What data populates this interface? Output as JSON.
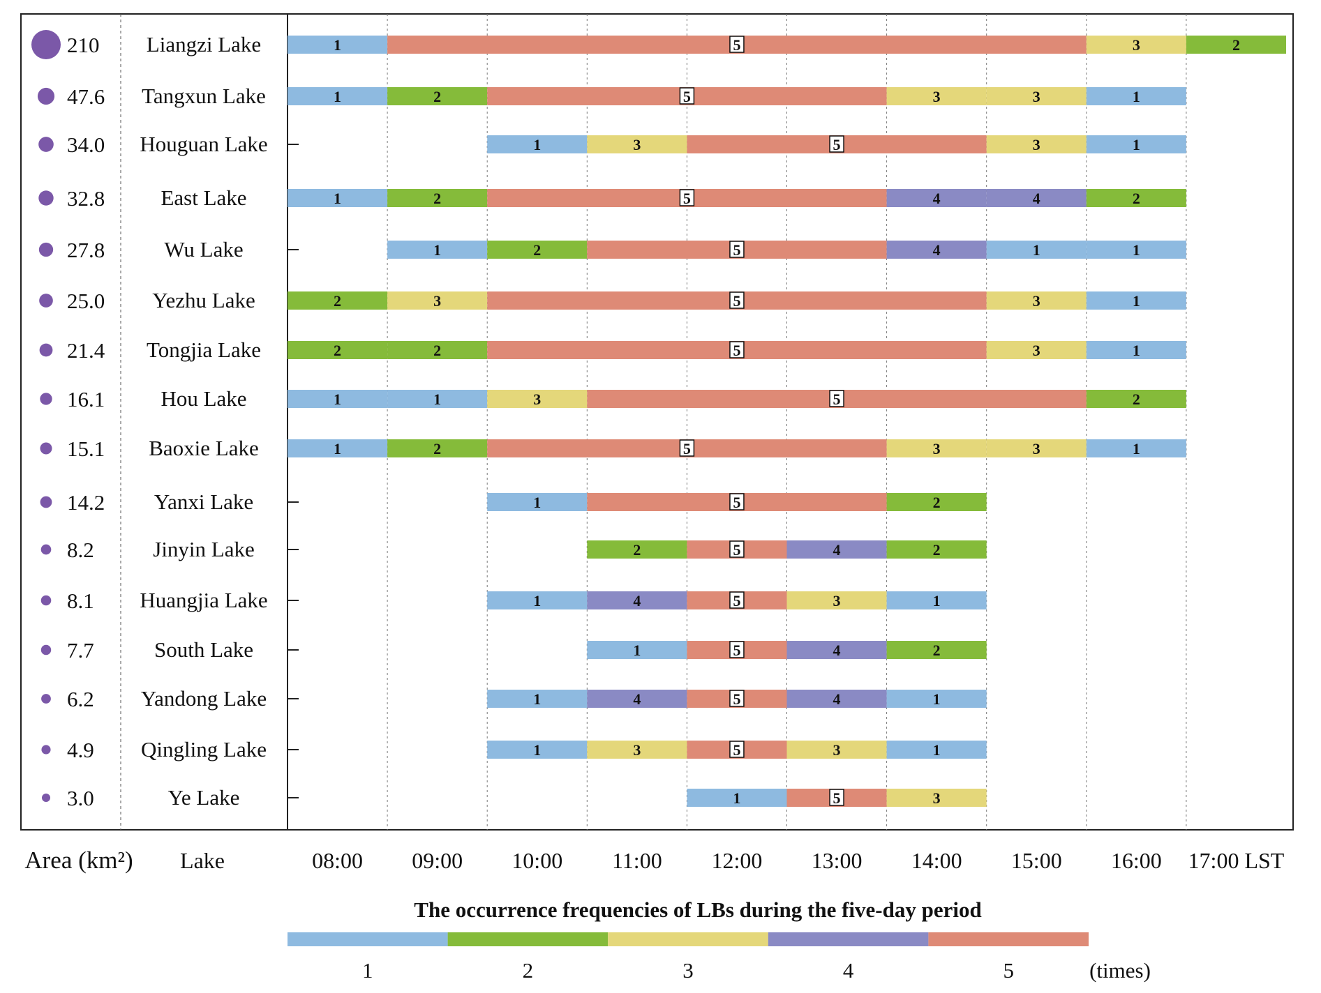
{
  "chart_data": {
    "type": "gantt",
    "title": "The occurrence frequencies of LBs during the five-day period",
    "column_headers": {
      "area": "Area (km²)",
      "lake": "Lake"
    },
    "time_unit_label": "LST",
    "times": [
      "08:00",
      "09:00",
      "10:00",
      "11:00",
      "12:00",
      "13:00",
      "14:00",
      "15:00",
      "16:00",
      "17:00"
    ],
    "legend": {
      "unit": "(times)",
      "levels": [
        {
          "value": 1,
          "label": "1",
          "color": "#8EBAE0"
        },
        {
          "value": 2,
          "label": "2",
          "color": "#85BB3A"
        },
        {
          "value": 3,
          "label": "3",
          "color": "#E4D77A"
        },
        {
          "value": 4,
          "label": "4",
          "color": "#8A8AC4"
        },
        {
          "value": 5,
          "label": "5",
          "color": "#DE8A76"
        }
      ]
    },
    "marker_color": "#7B58A8",
    "lakes": [
      {
        "name": "Liangzi Lake",
        "area": 210,
        "area_label": "210",
        "start": 8,
        "segments": [
          {
            "start": 8,
            "end": 9,
            "value": 1
          },
          {
            "start": 9,
            "end": 16,
            "value": 5
          },
          {
            "start": 16,
            "end": 17,
            "value": 3
          },
          {
            "start": 17,
            "end": 18,
            "value": 2
          }
        ]
      },
      {
        "name": "Tangxun Lake",
        "area": 47.6,
        "area_label": "47.6",
        "start": 8,
        "segments": [
          {
            "start": 8,
            "end": 9,
            "value": 1
          },
          {
            "start": 9,
            "end": 10,
            "value": 2
          },
          {
            "start": 10,
            "end": 14,
            "value": 5
          },
          {
            "start": 14,
            "end": 15,
            "value": 3
          },
          {
            "start": 15,
            "end": 16,
            "value": 3
          },
          {
            "start": 16,
            "end": 17,
            "value": 1
          }
        ]
      },
      {
        "name": "Houguan Lake",
        "area": 34.0,
        "area_label": "34.0",
        "start": 10,
        "segments": [
          {
            "start": 10,
            "end": 11,
            "value": 1
          },
          {
            "start": 11,
            "end": 12,
            "value": 3
          },
          {
            "start": 12,
            "end": 15,
            "value": 5
          },
          {
            "start": 15,
            "end": 16,
            "value": 3
          },
          {
            "start": 16,
            "end": 17,
            "value": 1
          }
        ]
      },
      {
        "name": "East Lake",
        "area": 32.8,
        "area_label": "32.8",
        "start": 8,
        "segments": [
          {
            "start": 8,
            "end": 9,
            "value": 1
          },
          {
            "start": 9,
            "end": 10,
            "value": 2
          },
          {
            "start": 10,
            "end": 14,
            "value": 5
          },
          {
            "start": 14,
            "end": 15,
            "value": 4
          },
          {
            "start": 15,
            "end": 16,
            "value": 4
          },
          {
            "start": 16,
            "end": 17,
            "value": 2
          }
        ]
      },
      {
        "name": "Wu Lake",
        "area": 27.8,
        "area_label": "27.8",
        "start": 9,
        "segments": [
          {
            "start": 9,
            "end": 10,
            "value": 1
          },
          {
            "start": 10,
            "end": 11,
            "value": 2
          },
          {
            "start": 11,
            "end": 14,
            "value": 5
          },
          {
            "start": 14,
            "end": 15,
            "value": 4
          },
          {
            "start": 15,
            "end": 16,
            "value": 1
          },
          {
            "start": 16,
            "end": 17,
            "value": 1
          }
        ]
      },
      {
        "name": "Yezhu Lake",
        "area": 25.0,
        "area_label": "25.0",
        "start": 8,
        "segments": [
          {
            "start": 8,
            "end": 9,
            "value": 2
          },
          {
            "start": 9,
            "end": 10,
            "value": 3
          },
          {
            "start": 10,
            "end": 15,
            "value": 5
          },
          {
            "start": 15,
            "end": 16,
            "value": 3
          },
          {
            "start": 16,
            "end": 17,
            "value": 1
          }
        ]
      },
      {
        "name": "Tongjia Lake",
        "area": 21.4,
        "area_label": "21.4",
        "start": 8,
        "segments": [
          {
            "start": 8,
            "end": 9,
            "value": 2
          },
          {
            "start": 9,
            "end": 10,
            "value": 2
          },
          {
            "start": 10,
            "end": 15,
            "value": 5
          },
          {
            "start": 15,
            "end": 16,
            "value": 3
          },
          {
            "start": 16,
            "end": 17,
            "value": 1
          }
        ]
      },
      {
        "name": "Hou Lake",
        "area": 16.1,
        "area_label": "16.1",
        "start": 8,
        "segments": [
          {
            "start": 8,
            "end": 9,
            "value": 1
          },
          {
            "start": 9,
            "end": 10,
            "value": 1
          },
          {
            "start": 10,
            "end": 11,
            "value": 3
          },
          {
            "start": 11,
            "end": 16,
            "value": 5
          },
          {
            "start": 16,
            "end": 17,
            "value": 2
          }
        ]
      },
      {
        "name": "Baoxie Lake",
        "area": 15.1,
        "area_label": "15.1",
        "start": 8,
        "segments": [
          {
            "start": 8,
            "end": 9,
            "value": 1
          },
          {
            "start": 9,
            "end": 10,
            "value": 2
          },
          {
            "start": 10,
            "end": 14,
            "value": 5
          },
          {
            "start": 14,
            "end": 15,
            "value": 3
          },
          {
            "start": 15,
            "end": 16,
            "value": 3
          },
          {
            "start": 16,
            "end": 17,
            "value": 1
          }
        ]
      },
      {
        "name": "Yanxi Lake",
        "area": 14.2,
        "area_label": "14.2",
        "start": 10,
        "segments": [
          {
            "start": 10,
            "end": 11,
            "value": 1
          },
          {
            "start": 11,
            "end": 14,
            "value": 5
          },
          {
            "start": 14,
            "end": 15,
            "value": 2
          }
        ]
      },
      {
        "name": "Jinyin Lake",
        "area": 8.2,
        "area_label": "8.2",
        "start": 11,
        "segments": [
          {
            "start": 11,
            "end": 12,
            "value": 2
          },
          {
            "start": 12,
            "end": 13,
            "value": 5
          },
          {
            "start": 13,
            "end": 14,
            "value": 4
          },
          {
            "start": 14,
            "end": 15,
            "value": 2
          }
        ]
      },
      {
        "name": "Huangjia Lake",
        "area": 8.1,
        "area_label": "8.1",
        "start": 10,
        "segments": [
          {
            "start": 10,
            "end": 11,
            "value": 1
          },
          {
            "start": 11,
            "end": 12,
            "value": 4
          },
          {
            "start": 12,
            "end": 13,
            "value": 5
          },
          {
            "start": 13,
            "end": 14,
            "value": 3
          },
          {
            "start": 14,
            "end": 15,
            "value": 1
          }
        ]
      },
      {
        "name": "South Lake",
        "area": 7.7,
        "area_label": "7.7",
        "start": 11,
        "segments": [
          {
            "start": 11,
            "end": 12,
            "value": 1
          },
          {
            "start": 12,
            "end": 13,
            "value": 5
          },
          {
            "start": 13,
            "end": 14,
            "value": 4
          },
          {
            "start": 14,
            "end": 15,
            "value": 2
          }
        ]
      },
      {
        "name": "Yandong Lake",
        "area": 6.2,
        "area_label": "6.2",
        "start": 10,
        "segments": [
          {
            "start": 10,
            "end": 11,
            "value": 1
          },
          {
            "start": 11,
            "end": 12,
            "value": 4
          },
          {
            "start": 12,
            "end": 13,
            "value": 5
          },
          {
            "start": 13,
            "end": 14,
            "value": 4
          },
          {
            "start": 14,
            "end": 15,
            "value": 1
          }
        ]
      },
      {
        "name": "Qingling Lake",
        "area": 4.9,
        "area_label": "4.9",
        "start": 10,
        "segments": [
          {
            "start": 10,
            "end": 11,
            "value": 1
          },
          {
            "start": 11,
            "end": 12,
            "value": 3
          },
          {
            "start": 12,
            "end": 13,
            "value": 5
          },
          {
            "start": 13,
            "end": 14,
            "value": 3
          },
          {
            "start": 14,
            "end": 15,
            "value": 1
          }
        ]
      },
      {
        "name": "Ye Lake",
        "area": 3.0,
        "area_label": "3.0",
        "start": 12,
        "segments": [
          {
            "start": 12,
            "end": 13,
            "value": 1
          },
          {
            "start": 13,
            "end": 14,
            "value": 5
          },
          {
            "start": 14,
            "end": 15,
            "value": 3
          }
        ]
      }
    ]
  }
}
